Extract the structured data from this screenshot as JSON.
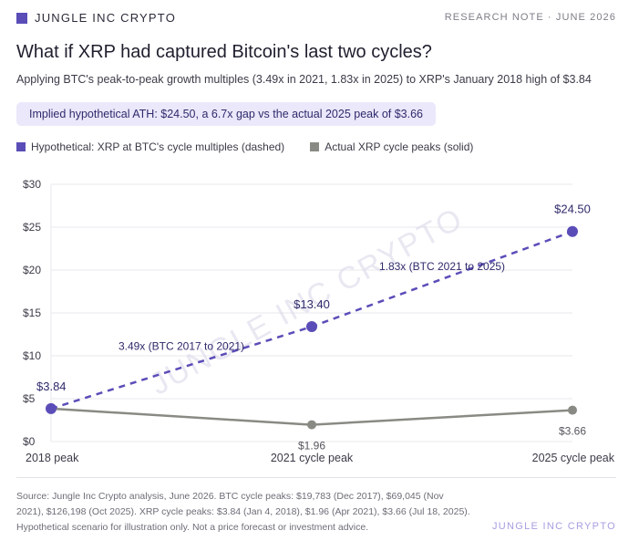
{
  "header": {
    "brand": "JUNGLE INC CRYPTO",
    "note": "RESEARCH NOTE · JUNE 2026"
  },
  "title": "What if XRP had captured Bitcoin's last two cycles?",
  "subtitle": "Applying BTC's peak-to-peak growth multiples (3.49x in 2021, 1.83x in 2025) to XRP's January 2018 high of $3.84",
  "callout": "Implied hypothetical ATH: $24.50, a 6.7x gap vs the actual 2025 peak of $3.66",
  "colors": {
    "brand": "#5b4db8",
    "actual": "#8a8a84",
    "grid": "#e9e9ee",
    "watermark": "#d5d3e6"
  },
  "watermark": "JUNGLE INC CRYPTO",
  "chart_data": {
    "type": "line",
    "categories": [
      "2018 peak",
      "2021 cycle peak",
      "2025 cycle peak"
    ],
    "ylim": [
      0,
      30
    ],
    "yticks": [
      0,
      5,
      10,
      15,
      20,
      25,
      30
    ],
    "ytick_labels": [
      "$0",
      "$5",
      "$10",
      "$15",
      "$20",
      "$25",
      "$30"
    ],
    "grid": true,
    "legend_position": "top-left",
    "series": [
      {
        "name": "Hypothetical: XRP at BTC's cycle multiples (dashed)",
        "style": "dashed",
        "values": [
          3.84,
          13.4,
          24.5
        ],
        "labels": [
          "$3.84",
          "$13.40",
          "$24.50"
        ]
      },
      {
        "name": "Actual XRP cycle peaks (solid)",
        "style": "solid",
        "values": [
          3.84,
          1.96,
          3.66
        ],
        "labels": [
          "",
          "$1.96",
          "$3.66"
        ]
      }
    ],
    "annotations": [
      {
        "text": "3.49x (BTC 2017 to 2021)",
        "x": 0.5,
        "y": 10.7
      },
      {
        "text": "1.83x (BTC 2021 to 2025)",
        "x": 1.5,
        "y": 20.0
      }
    ]
  },
  "source": "Source: Jungle Inc Crypto analysis, June 2026. BTC cycle peaks: $19,783 (Dec 2017), $69,045 (Nov 2021), $126,198 (Oct 2025). XRP cycle peaks: $3.84 (Jan 4, 2018), $1.96 (Apr 2021), $3.66 (Jul 18, 2025). Hypothetical scenario for illustration only. Not a price forecast or investment advice.",
  "footer_brand": "JUNGLE INC CRYPTO"
}
